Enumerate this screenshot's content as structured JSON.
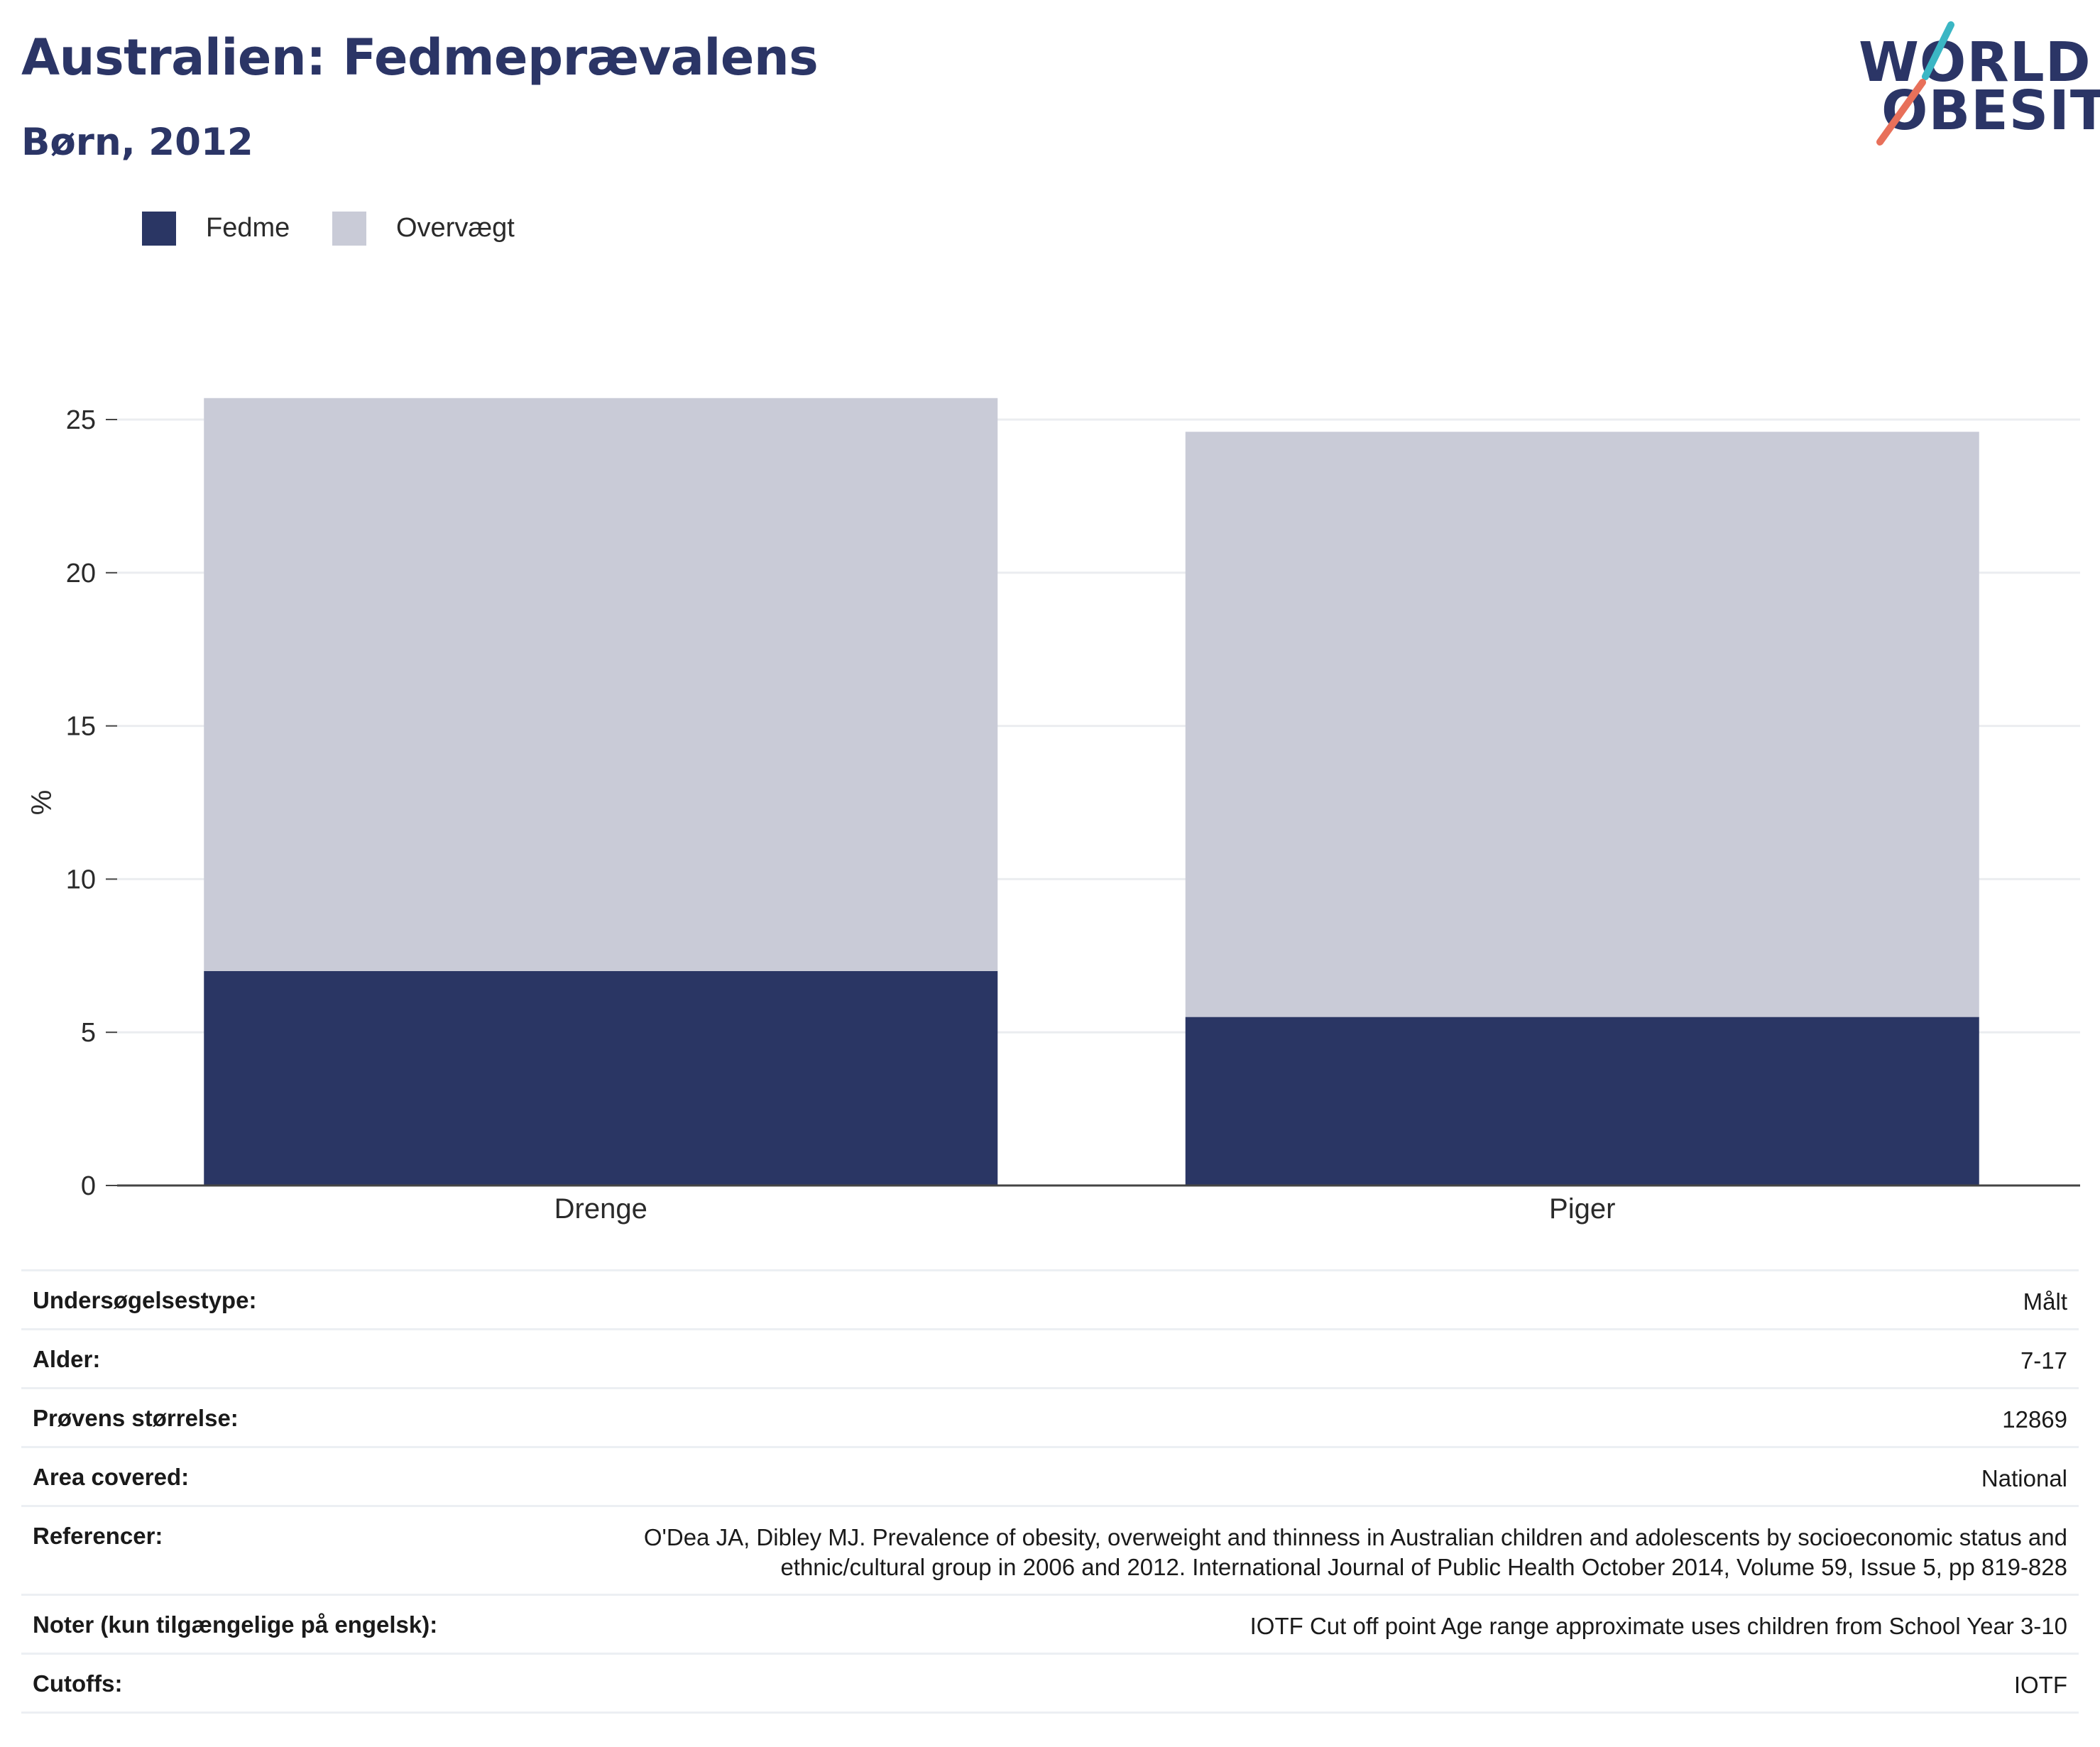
{
  "header": {
    "title": "Australien: Fedmeprævalens",
    "subtitle": "Børn, 2012"
  },
  "logo": {
    "line1": "WORLD",
    "line2": "OBESITY",
    "colors": {
      "text": "#2b3566",
      "slash_top": "#3bb6c4",
      "slash_bottom": "#e8705a"
    }
  },
  "chart_data": {
    "type": "bar",
    "stacked": true,
    "categories": [
      "Drenge",
      "Piger"
    ],
    "series": [
      {
        "name": "Fedme",
        "color": "#2a3664",
        "values": [
          7.0,
          5.5
        ]
      },
      {
        "name": "Overvægt",
        "color": "#c9cbd7",
        "values": [
          18.7,
          19.1
        ]
      }
    ],
    "xlabel": "",
    "ylabel": "%",
    "ylim": [
      0,
      27
    ],
    "yticks": [
      0,
      5,
      10,
      15,
      20,
      25
    ],
    "grid": true,
    "legend": "top-left"
  },
  "info": [
    {
      "label": "Undersøgelsestype:",
      "value": "Målt"
    },
    {
      "label": "Alder:",
      "value": "7-17"
    },
    {
      "label": "Prøvens størrelse:",
      "value": "12869"
    },
    {
      "label": "Area covered:",
      "value": "National"
    },
    {
      "label": "Referencer:",
      "value_lines": [
        "O'Dea JA, Dibley MJ. Prevalence of obesity, overweight and thinness in Australian children and adolescents by socioeconomic status and",
        "ethnic/cultural group in 2006 and 2012. International Journal of Public Health October 2014, Volume 59, Issue 5, pp 819-828"
      ]
    },
    {
      "label": "Noter (kun tilgængelige på engelsk):",
      "value": "IOTF Cut off point Age range approximate uses children from School Year 3-10"
    },
    {
      "label": "Cutoffs:",
      "value": "IOTF"
    }
  ]
}
